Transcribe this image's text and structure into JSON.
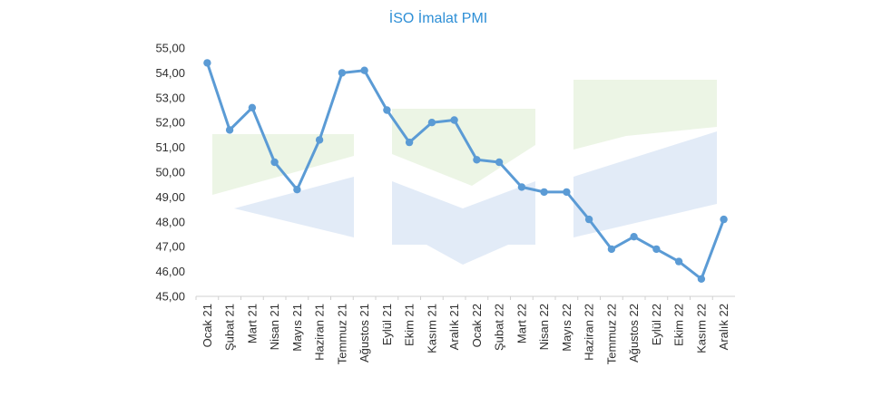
{
  "chart_data": {
    "type": "line",
    "title": "İSO İmalat PMI",
    "xlabel": "",
    "ylabel": "",
    "ylim": [
      45,
      55
    ],
    "yticks": [
      "45,00",
      "46,00",
      "47,00",
      "48,00",
      "49,00",
      "50,00",
      "51,00",
      "52,00",
      "53,00",
      "54,00",
      "55,00"
    ],
    "categories": [
      "Ocak 21",
      "Şubat 21",
      "Mart 21",
      "Nisan 21",
      "Mayıs 21",
      "Haziran 21",
      "Temmuz 21",
      "Ağustos 21",
      "Eylül 21",
      "Ekim 21",
      "Kasım 21",
      "Aralık 21",
      "Ocak 22",
      "Şubat 22",
      "Mart 22",
      "Nisan 22",
      "Mayıs 22",
      "Haziran 22",
      "Temmuz 22",
      "Ağustos 22",
      "Eylül 22",
      "Ekim 22",
      "Kasım 22",
      "Aralık 22"
    ],
    "series": [
      {
        "values": [
          54.4,
          51.7,
          52.6,
          50.4,
          49.3,
          51.3,
          54.0,
          54.1,
          52.5,
          51.2,
          52.0,
          52.1,
          50.5,
          50.4,
          49.4,
          49.2,
          49.2,
          48.1,
          46.9,
          47.4,
          46.9,
          46.4,
          45.7,
          48.1
        ],
        "color": "#5b9bd5"
      }
    ],
    "grid": false,
    "legend": "none"
  }
}
